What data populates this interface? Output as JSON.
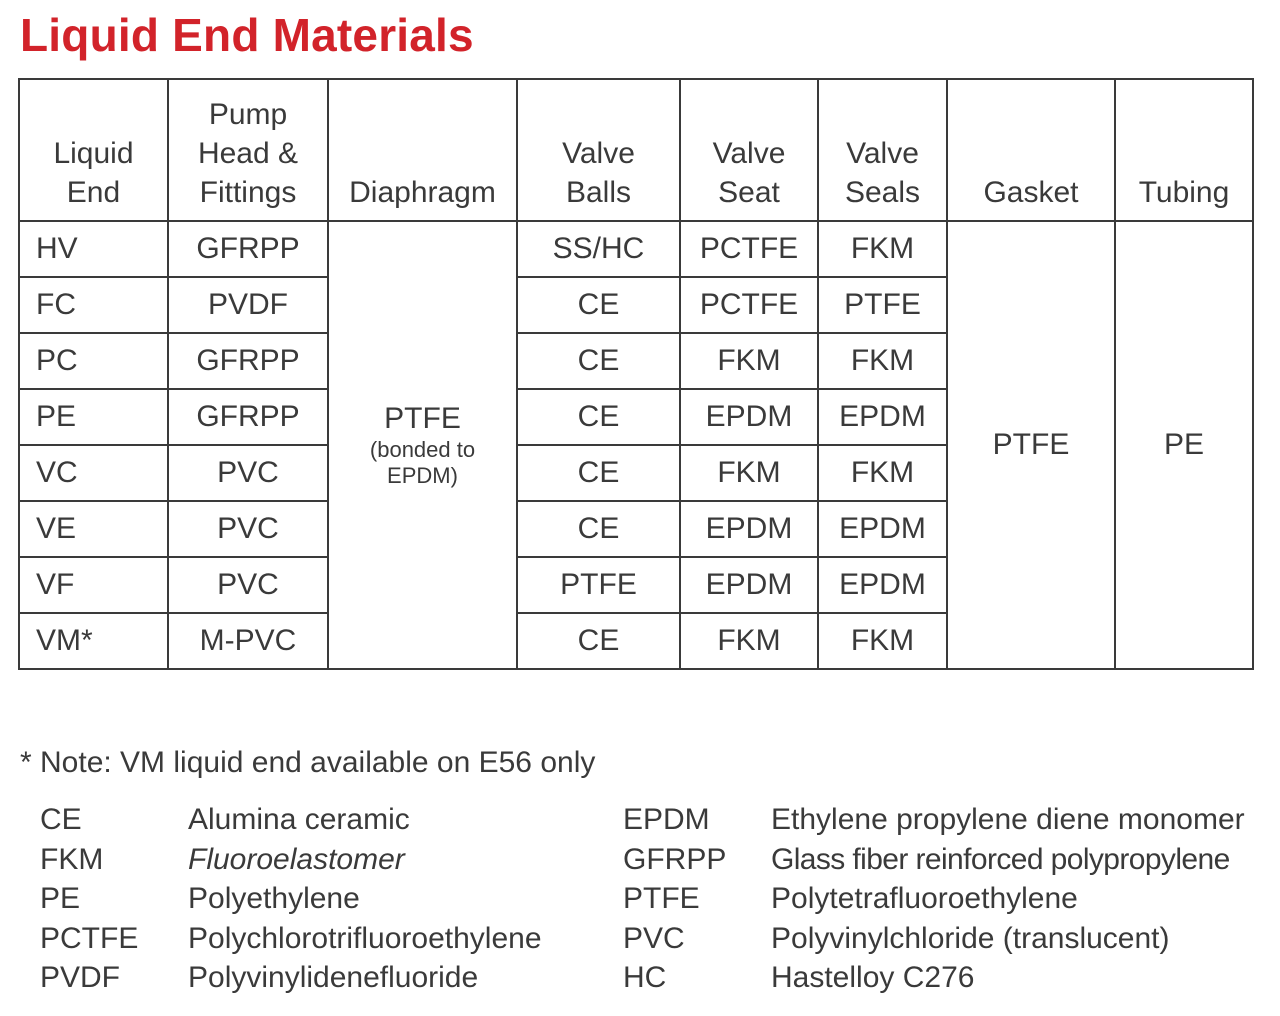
{
  "title": "Liquid End Materials",
  "colors": {
    "title": "#d2232a",
    "text": "#3a3a3a",
    "border": "#3a3a3a"
  },
  "headers": [
    "Liquid\nEnd",
    "Pump\nHead &\nFittings",
    "Diaphragm",
    "Valve\nBalls",
    "Valve\nSeat",
    "Valve\nSeals",
    "Gasket",
    "Tubing"
  ],
  "rows": [
    {
      "liquid_end": "HV",
      "pump_head": "GFRPP",
      "valve_balls": "SS/HC",
      "valve_seat": "PCTFE",
      "valve_seals": "FKM"
    },
    {
      "liquid_end": "FC",
      "pump_head": "PVDF",
      "valve_balls": "CE",
      "valve_seat": "PCTFE",
      "valve_seals": "PTFE"
    },
    {
      "liquid_end": "PC",
      "pump_head": "GFRPP",
      "valve_balls": "CE",
      "valve_seat": "FKM",
      "valve_seals": "FKM"
    },
    {
      "liquid_end": "PE",
      "pump_head": "GFRPP",
      "valve_balls": "CE",
      "valve_seat": "EPDM",
      "valve_seals": "EPDM"
    },
    {
      "liquid_end": "VC",
      "pump_head": "PVC",
      "valve_balls": "CE",
      "valve_seat": "FKM",
      "valve_seals": "FKM"
    },
    {
      "liquid_end": "VE",
      "pump_head": "PVC",
      "valve_balls": "CE",
      "valve_seat": "EPDM",
      "valve_seals": "EPDM"
    },
    {
      "liquid_end": "VF",
      "pump_head": "PVC",
      "valve_balls": "PTFE",
      "valve_seat": "EPDM",
      "valve_seals": "EPDM"
    },
    {
      "liquid_end": "VM*",
      "pump_head": "M-PVC",
      "valve_balls": "CE",
      "valve_seat": "FKM",
      "valve_seals": "FKM"
    }
  ],
  "diaphragm": {
    "main": "PTFE",
    "sub": "(bonded to\nEPDM)"
  },
  "gasket": "PTFE",
  "tubing": "PE",
  "note": "* Note: VM liquid end available on E56 only",
  "legend_left": [
    {
      "abbr": "CE",
      "def": "Alumina ceramic"
    },
    {
      "abbr": "FKM",
      "def": "Fluoroelastomer"
    },
    {
      "abbr": "PE",
      "def": "Polyethylene"
    },
    {
      "abbr": "PCTFE",
      "def": "Polychlorotrifluoroethylene"
    },
    {
      "abbr": "PVDF",
      "def": "Polyvinylidenefluoride"
    }
  ],
  "legend_right": [
    {
      "abbr": "EPDM",
      "def": "Ethylene propylene diene monomer"
    },
    {
      "abbr": "GFRPP",
      "def": "Glass fiber reinforced polypropylene"
    },
    {
      "abbr": "PTFE",
      "def": "Polytetrafluoroethylene"
    },
    {
      "abbr": "PVC",
      "def": "Polyvinylchloride (translucent)"
    },
    {
      "abbr": "HC",
      "def": "Hastelloy C276"
    }
  ]
}
